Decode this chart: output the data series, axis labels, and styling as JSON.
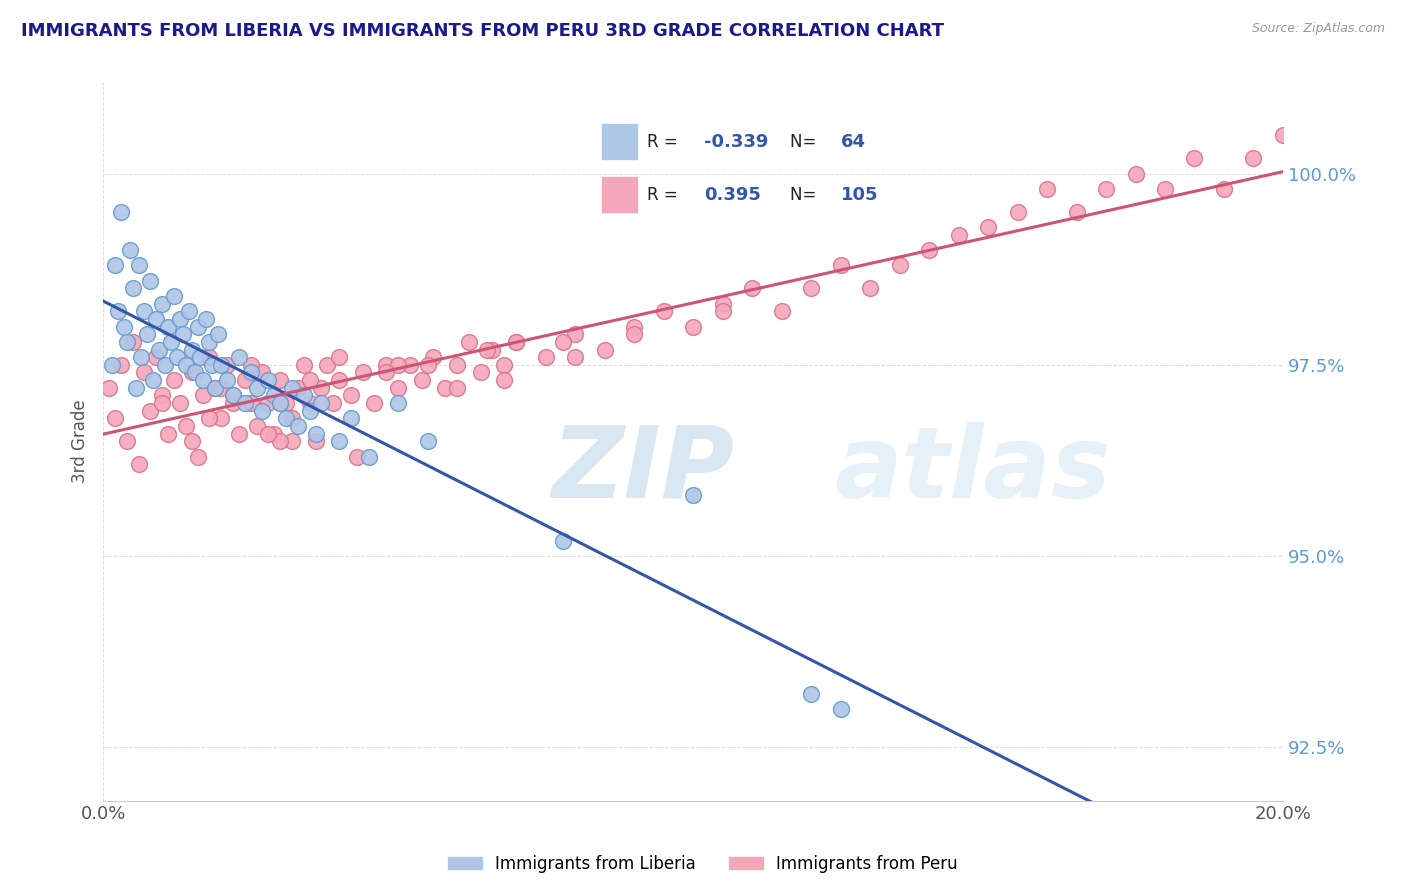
{
  "title": "IMMIGRANTS FROM LIBERIA VS IMMIGRANTS FROM PERU 3RD GRADE CORRELATION CHART",
  "source": "Source: ZipAtlas.com",
  "ylabel": "3rd Grade",
  "xlim": [
    0.0,
    20.0
  ],
  "ylim": [
    91.8,
    101.2
  ],
  "x_ticks": [
    0.0,
    20.0
  ],
  "x_tick_labels": [
    "0.0%",
    "20.0%"
  ],
  "y_ticks": [
    92.5,
    95.0,
    97.5,
    100.0
  ],
  "y_tick_labels": [
    "92.5%",
    "95.0%",
    "97.5%",
    "100.0%"
  ],
  "legend_R1": "-0.339",
  "legend_N1": "64",
  "legend_R2": "0.395",
  "legend_N2": "105",
  "liberia_color": "#aec6e8",
  "peru_color": "#f4a7b9",
  "liberia_edge_color": "#6699cc",
  "peru_edge_color": "#d9748a",
  "trend_blue": "#3355aa",
  "trend_pink": "#cc5577",
  "background_color": "#ffffff",
  "watermark_zip": "ZIP",
  "watermark_atlas": "atlas",
  "liberia_x": [
    0.15,
    0.2,
    0.25,
    0.3,
    0.35,
    0.4,
    0.45,
    0.5,
    0.55,
    0.6,
    0.65,
    0.7,
    0.75,
    0.8,
    0.85,
    0.9,
    0.95,
    1.0,
    1.05,
    1.1,
    1.15,
    1.2,
    1.25,
    1.3,
    1.35,
    1.4,
    1.45,
    1.5,
    1.55,
    1.6,
    1.65,
    1.7,
    1.75,
    1.8,
    1.85,
    1.9,
    1.95,
    2.0,
    2.1,
    2.2,
    2.3,
    2.4,
    2.5,
    2.6,
    2.7,
    2.8,
    2.9,
    3.0,
    3.1,
    3.2,
    3.3,
    3.4,
    3.5,
    3.6,
    3.7,
    4.0,
    4.2,
    4.5,
    5.0,
    5.5,
    7.8,
    10.0,
    12.0,
    12.5
  ],
  "liberia_y": [
    97.5,
    98.8,
    98.2,
    99.5,
    98.0,
    97.8,
    99.0,
    98.5,
    97.2,
    98.8,
    97.6,
    98.2,
    97.9,
    98.6,
    97.3,
    98.1,
    97.7,
    98.3,
    97.5,
    98.0,
    97.8,
    98.4,
    97.6,
    98.1,
    97.9,
    97.5,
    98.2,
    97.7,
    97.4,
    98.0,
    97.6,
    97.3,
    98.1,
    97.8,
    97.5,
    97.2,
    97.9,
    97.5,
    97.3,
    97.1,
    97.6,
    97.0,
    97.4,
    97.2,
    96.9,
    97.3,
    97.1,
    97.0,
    96.8,
    97.2,
    96.7,
    97.1,
    96.9,
    96.6,
    97.0,
    96.5,
    96.8,
    96.3,
    97.0,
    96.5,
    95.2,
    95.8,
    93.2,
    93.0
  ],
  "peru_x": [
    0.1,
    0.2,
    0.3,
    0.4,
    0.5,
    0.6,
    0.7,
    0.8,
    0.9,
    1.0,
    1.1,
    1.2,
    1.3,
    1.4,
    1.5,
    1.6,
    1.7,
    1.8,
    1.9,
    2.0,
    2.1,
    2.2,
    2.3,
    2.4,
    2.5,
    2.6,
    2.7,
    2.8,
    2.9,
    3.0,
    3.1,
    3.2,
    3.3,
    3.4,
    3.5,
    3.6,
    3.7,
    3.8,
    3.9,
    4.0,
    4.2,
    4.4,
    4.6,
    4.8,
    5.0,
    5.2,
    5.4,
    5.6,
    5.8,
    6.0,
    6.2,
    6.4,
    6.6,
    6.8,
    7.0,
    7.5,
    8.0,
    8.5,
    9.0,
    9.5,
    10.0,
    10.5,
    11.0,
    11.5,
    12.0,
    12.5,
    13.0,
    13.5,
    14.0,
    14.5,
    15.0,
    15.5,
    16.0,
    16.5,
    17.0,
    17.5,
    18.0,
    18.5,
    19.0,
    19.5,
    20.0,
    1.0,
    1.5,
    2.0,
    2.5,
    3.0,
    3.5,
    4.0,
    5.0,
    6.0,
    7.0,
    8.0,
    9.0,
    3.2,
    4.8,
    6.5,
    2.2,
    5.5,
    7.8,
    10.5,
    3.0,
    1.8,
    4.3,
    6.8,
    2.8
  ],
  "peru_y": [
    97.2,
    96.8,
    97.5,
    96.5,
    97.8,
    96.2,
    97.4,
    96.9,
    97.6,
    97.1,
    96.6,
    97.3,
    97.0,
    96.7,
    97.4,
    96.3,
    97.1,
    97.6,
    97.2,
    96.8,
    97.5,
    97.0,
    96.6,
    97.3,
    97.0,
    96.7,
    97.4,
    97.0,
    96.6,
    97.3,
    97.0,
    96.5,
    97.2,
    97.5,
    97.0,
    96.5,
    97.2,
    97.5,
    97.0,
    97.3,
    97.1,
    97.4,
    97.0,
    97.5,
    97.2,
    97.5,
    97.3,
    97.6,
    97.2,
    97.5,
    97.8,
    97.4,
    97.7,
    97.5,
    97.8,
    97.6,
    97.9,
    97.7,
    98.0,
    98.2,
    98.0,
    98.3,
    98.5,
    98.2,
    98.5,
    98.8,
    98.5,
    98.8,
    99.0,
    99.2,
    99.3,
    99.5,
    99.8,
    99.5,
    99.8,
    100.0,
    99.8,
    100.2,
    99.8,
    100.2,
    100.5,
    97.0,
    96.5,
    97.2,
    97.5,
    97.0,
    97.3,
    97.6,
    97.5,
    97.2,
    97.8,
    97.6,
    97.9,
    96.8,
    97.4,
    97.7,
    97.1,
    97.5,
    97.8,
    98.2,
    96.5,
    96.8,
    96.3,
    97.3,
    96.6
  ],
  "figsize": [
    14.06,
    8.92
  ],
  "dpi": 100
}
